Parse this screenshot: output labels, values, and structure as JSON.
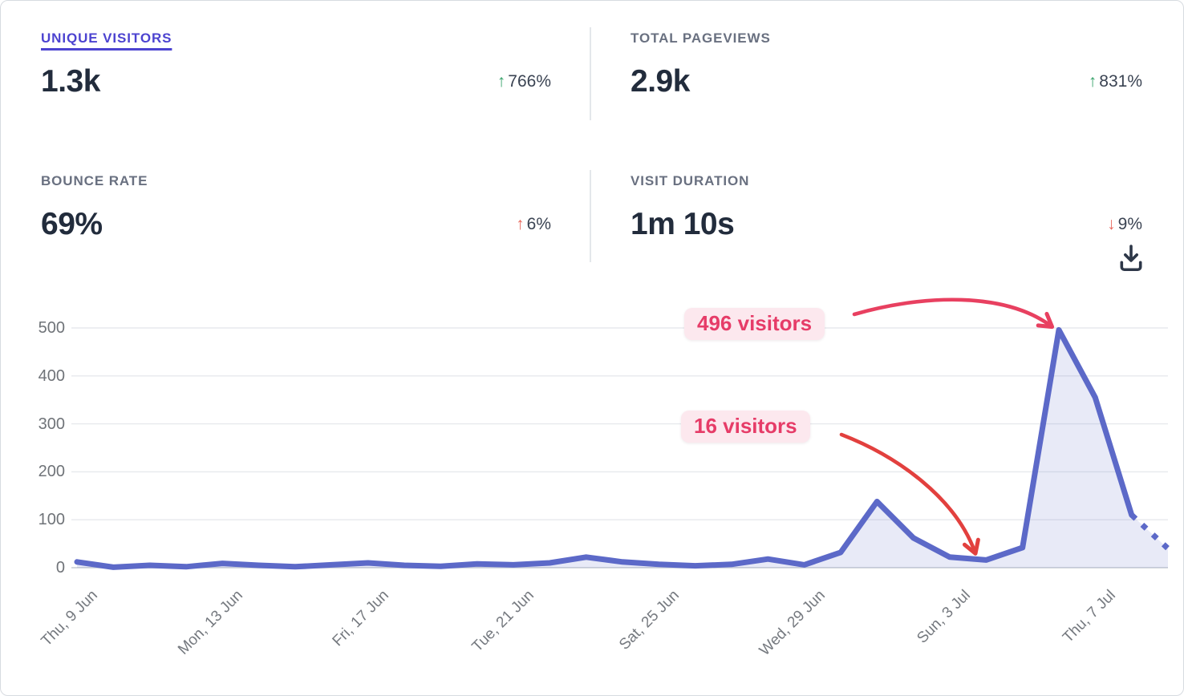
{
  "stats": {
    "unique_visitors": {
      "label": "UNIQUE VISITORS",
      "value": "1.3k",
      "arrow": "↑",
      "change": "766%",
      "direction": "up",
      "sentiment": "positive",
      "active": true
    },
    "total_pageviews": {
      "label": "TOTAL PAGEVIEWS",
      "value": "2.9k",
      "arrow": "↑",
      "change": "831%",
      "direction": "up",
      "sentiment": "positive"
    },
    "bounce_rate": {
      "label": "BOUNCE RATE",
      "value": "69%",
      "arrow": "↑",
      "change": "6%",
      "direction": "up",
      "sentiment": "negative"
    },
    "visit_duration": {
      "label": "VISIT DURATION",
      "value": "1m 10s",
      "arrow": "↓",
      "change": "9%",
      "direction": "down",
      "sentiment": "negative"
    }
  },
  "icons": {
    "download": "download-icon"
  },
  "colors": {
    "accent_indigo": "#4c43d0",
    "line": "#5c69c8",
    "area_fill": "rgba(92,105,200,0.14)",
    "annotation_pink": "#e63c68",
    "annotation_pill_bg": "#fce8ee",
    "arrow_1": "#e84060",
    "arrow_2": "#e2403e",
    "positive_green": "#36a269",
    "negative_red": "#e96a5f",
    "gridline": "#e7e9ed",
    "gridline_zero": "#d4d8dd",
    "axis_text": "#6f7378"
  },
  "chart_data": {
    "type": "area",
    "title": "Unique visitors over time",
    "x": [
      "9 Jun",
      "10 Jun",
      "11 Jun",
      "12 Jun",
      "13 Jun",
      "14 Jun",
      "15 Jun",
      "16 Jun",
      "17 Jun",
      "18 Jun",
      "19 Jun",
      "20 Jun",
      "21 Jun",
      "22 Jun",
      "23 Jun",
      "24 Jun",
      "25 Jun",
      "26 Jun",
      "27 Jun",
      "28 Jun",
      "29 Jun",
      "30 Jun",
      "1 Jul",
      "2 Jul",
      "3 Jul",
      "4 Jul",
      "5 Jul",
      "6 Jul",
      "7 Jul",
      "8 Jul",
      "9 Jul"
    ],
    "values": [
      12,
      1,
      5,
      2,
      9,
      5,
      2,
      6,
      10,
      5,
      3,
      8,
      6,
      10,
      22,
      12,
      7,
      4,
      7,
      18,
      6,
      32,
      138,
      62,
      22,
      16,
      42,
      496,
      355,
      110,
      40
    ],
    "series_name": "visitors",
    "ylim": [
      0,
      500
    ],
    "yticks": [
      0,
      100,
      200,
      300,
      400,
      500
    ],
    "xtick_indices": [
      0,
      4,
      8,
      12,
      16,
      20,
      24,
      28
    ],
    "xtick_labels": [
      "Thu, 9 Jun",
      "Mon, 13 Jun",
      "Fri, 17 Jun",
      "Tue, 21 Jun",
      "Sat, 25 Jun",
      "Wed, 29 Jun",
      "Sun, 3 Jul",
      "Thu, 7 Jul"
    ],
    "grid": "horizontal",
    "legend": "none",
    "dashed_from_index": 29,
    "annotations": [
      {
        "label": "496 visitors",
        "value": 496,
        "target_x": "6 Jul",
        "target_index": 27
      },
      {
        "label": "16 visitors",
        "value": 16,
        "target_x": "4 Jul",
        "target_index": 25
      }
    ]
  }
}
